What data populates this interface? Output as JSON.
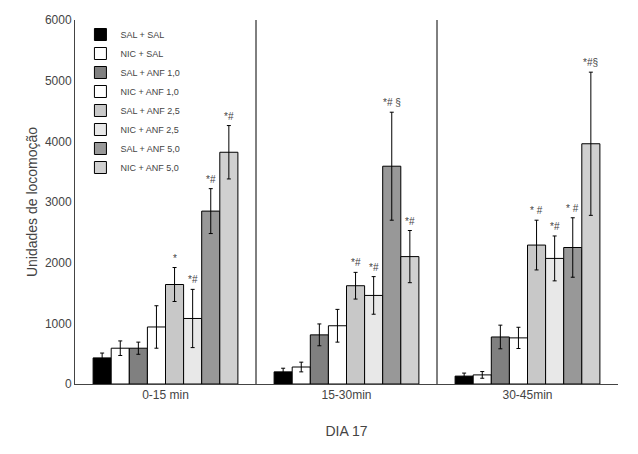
{
  "chart_data": {
    "type": "bar",
    "xlabel": "DIA 17",
    "ylabel": "Unidades de locomoção",
    "categories": [
      "0-15 min",
      "15-30min",
      "30-45min"
    ],
    "series": [
      {
        "name": "SAL + SAL",
        "color": "#000000",
        "values": [
          430,
          200,
          130
        ],
        "errors": [
          80,
          60,
          50
        ]
      },
      {
        "name": "NIC + SAL",
        "color": "#ffffff",
        "values": [
          590,
          280,
          150
        ],
        "errors": [
          120,
          80,
          55
        ]
      },
      {
        "name": "SAL + ANF 1,0",
        "color": "#808080",
        "values": [
          590,
          810,
          775
        ],
        "errors": [
          100,
          180,
          195
        ]
      },
      {
        "name": "NIC + ANF 1,0",
        "color": "#ffffff",
        "values": [
          940,
          960,
          760
        ],
        "errors": [
          350,
          270,
          175
        ]
      },
      {
        "name": "SAL + ANF 2,5",
        "color": "#c8c8c8",
        "values": [
          1640,
          1620,
          2290
        ],
        "errors": [
          280,
          220,
          410
        ]
      },
      {
        "name": "NIC + ANF 2,5",
        "color": "#e8e8e8",
        "values": [
          1080,
          1460,
          2070
        ],
        "errors": [
          480,
          310,
          370
        ]
      },
      {
        "name": "SAL + ANF 5,0",
        "color": "#989898",
        "values": [
          2850,
          3590,
          2250
        ],
        "errors": [
          370,
          890,
          490
        ]
      },
      {
        "name": "NIC + ANF 5,0",
        "color": "#d0d0d0",
        "values": [
          3820,
          2100,
          3960
        ],
        "errors": [
          440,
          430,
          1180
        ]
      }
    ],
    "annotations": [
      {
        "category": "0-15 min",
        "series": "SAL + ANF 2,5",
        "text": "*"
      },
      {
        "category": "0-15 min",
        "series": "NIC + ANF 2,5",
        "text": "*#"
      },
      {
        "category": "0-15 min",
        "series": "SAL + ANF 5,0",
        "text": "*#"
      },
      {
        "category": "0-15 min",
        "series": "NIC + ANF 5,0",
        "text": "*#"
      },
      {
        "category": "15-30min",
        "series": "SAL + ANF 2,5",
        "text": "*#"
      },
      {
        "category": "15-30min",
        "series": "NIC + ANF 2,5",
        "text": "*#"
      },
      {
        "category": "15-30min",
        "series": "SAL + ANF 5,0",
        "text": "*# §"
      },
      {
        "category": "15-30min",
        "series": "NIC + ANF 5,0",
        "text": "*#"
      },
      {
        "category": "30-45min",
        "series": "SAL + ANF 2,5",
        "text": "* #"
      },
      {
        "category": "30-45min",
        "series": "NIC + ANF 2,5",
        "text": "*#"
      },
      {
        "category": "30-45min",
        "series": "SAL + ANF 5,0",
        "text": "* #"
      },
      {
        "category": "30-45min",
        "series": "NIC + ANF 5,0",
        "text": "*#§"
      }
    ],
    "ylim": [
      0,
      6000
    ],
    "yticks": [
      0,
      1000,
      2000,
      3000,
      4000,
      5000,
      6000
    ],
    "grid": false,
    "legend": "upper left"
  }
}
